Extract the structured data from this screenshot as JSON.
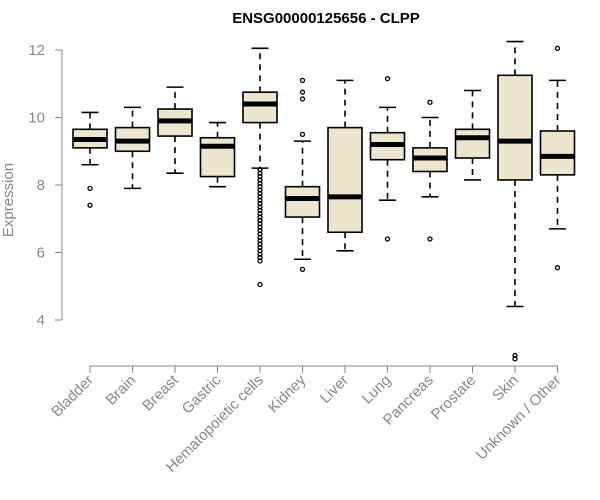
{
  "chart_data": {
    "type": "box",
    "title": "ENSG00000125656 - CLPP",
    "xlabel": "",
    "ylabel": "Expression",
    "ylim": [
      3,
      12.5
    ],
    "yticks": [
      4,
      6,
      8,
      10,
      12
    ],
    "grid": false,
    "legend": "none",
    "colors": {
      "box_fill": "#ede6cf",
      "stroke": "#000000",
      "axis": "#888888"
    },
    "categories": [
      "Bladder",
      "Brain",
      "Breast",
      "Gastric",
      "Hematopoietic cells",
      "Kidney",
      "Liver",
      "Lung",
      "Pancreas",
      "Prostate",
      "Skin",
      "Unknown / Other"
    ],
    "boxes": [
      {
        "min": 8.6,
        "q1": 9.1,
        "median": 9.35,
        "q3": 9.65,
        "max": 10.15,
        "outliers": [
          7.9,
          7.4
        ]
      },
      {
        "min": 7.9,
        "q1": 9.0,
        "median": 9.3,
        "q3": 9.7,
        "max": 10.3,
        "outliers": []
      },
      {
        "min": 8.35,
        "q1": 9.45,
        "median": 9.9,
        "q3": 10.25,
        "max": 10.9,
        "outliers": []
      },
      {
        "min": 7.95,
        "q1": 8.25,
        "median": 9.15,
        "q3": 9.4,
        "max": 9.85,
        "outliers": []
      },
      {
        "min": 8.5,
        "q1": 9.85,
        "median": 10.4,
        "q3": 10.75,
        "max": 12.05,
        "outliers": [
          8.45,
          8.35,
          8.25,
          8.15,
          8.05,
          7.95,
          7.85,
          7.75,
          7.65,
          7.55,
          7.45,
          7.35,
          7.25,
          7.15,
          7.05,
          6.95,
          6.85,
          6.75,
          6.65,
          6.55,
          6.45,
          6.35,
          6.25,
          6.15,
          6.05,
          5.95,
          5.85,
          5.75,
          5.05
        ]
      },
      {
        "min": 5.8,
        "q1": 7.05,
        "median": 7.6,
        "q3": 7.95,
        "max": 9.3,
        "outliers": [
          11.1,
          10.75,
          10.55,
          9.5,
          5.5
        ]
      },
      {
        "min": 6.05,
        "q1": 6.6,
        "median": 7.65,
        "q3": 9.7,
        "max": 11.1,
        "outliers": []
      },
      {
        "min": 7.55,
        "q1": 8.75,
        "median": 9.2,
        "q3": 9.55,
        "max": 10.3,
        "outliers": [
          11.15,
          6.4
        ]
      },
      {
        "min": 7.65,
        "q1": 8.4,
        "median": 8.8,
        "q3": 9.1,
        "max": 10.0,
        "outliers": [
          10.45,
          6.4
        ]
      },
      {
        "min": 8.15,
        "q1": 8.8,
        "median": 9.4,
        "q3": 9.65,
        "max": 10.8,
        "outliers": []
      },
      {
        "min": 4.4,
        "q1": 8.15,
        "median": 9.3,
        "q3": 11.25,
        "max": 12.25,
        "outliers": [
          2.95,
          2.85
        ]
      },
      {
        "min": 6.7,
        "q1": 8.3,
        "median": 8.85,
        "q3": 9.6,
        "max": 11.1,
        "outliers": [
          12.05,
          5.55
        ]
      }
    ]
  }
}
